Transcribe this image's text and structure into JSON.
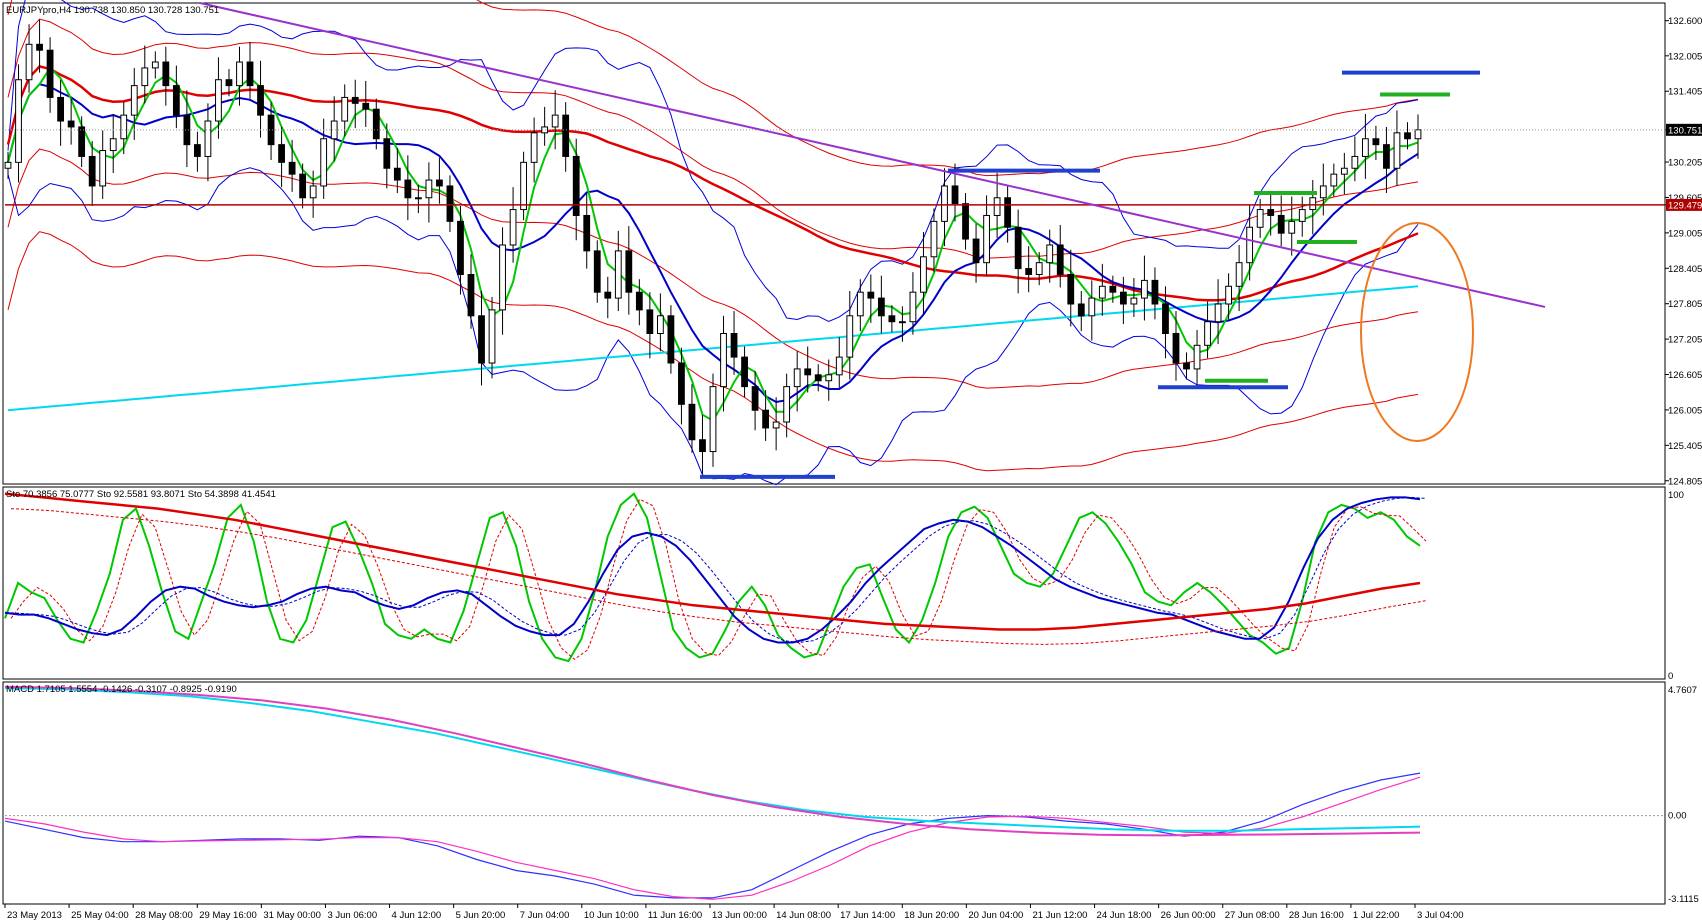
{
  "window": {
    "symbol_line": "EURJPYpro,H4  130.738 130.850 130.728 130.751"
  },
  "colors": {
    "background": "#ffffff",
    "bull": "#ffffff",
    "bear": "#000000",
    "bb_inner": "#0000dd",
    "bb_outer": "#e00000",
    "ma_fast": "#00c800",
    "ma_mid": "#0000c8",
    "ma_slow": "#e00000",
    "ma_long": "#00d8f0",
    "trendline": "#9932cc",
    "hline": "#b00000",
    "circle": "#f07820",
    "macd_main": "#3030ff",
    "macd_signal": "#ff30c0",
    "macd_long": "#00d8f0",
    "macd_long_signal": "#e040c0"
  },
  "price_panel": {
    "axis_labels": [
      "132.600",
      "132.005",
      "131.405",
      "130.751",
      "130.205",
      "129.605",
      "129.479",
      "129.005",
      "128.405",
      "127.805",
      "127.205",
      "126.605",
      "126.005",
      "125.405",
      "124.805"
    ],
    "current_price_tag": "130.751",
    "hline_price_tag": "129.479"
  },
  "stoch_panel": {
    "title": "Sto 70.3856 75.0777  Sto 92.5581 93.8071  Sto 54.3898 41.4541",
    "axis_labels": [
      "100",
      "0"
    ]
  },
  "macd_panel": {
    "title": "MACD 1.7105 1.5554 -0.1426 -0.3107 -0.8925 -0.9190",
    "axis_labels": [
      "4.7607",
      "0.00",
      "-3.1115"
    ]
  },
  "time_axis": {
    "labels": [
      "23 May 2013",
      "25 May 04:00",
      "28 May 08:00",
      "29 May 16:00",
      "31 May 00:00",
      "3 Jun 06:00",
      "4 Jun 12:00",
      "5 Jun 20:00",
      "7 Jun 04:00",
      "10 Jun 10:00",
      "11 Jun 16:00",
      "13 Jun 00:00",
      "14 Jun 08:00",
      "17 Jun 14:00",
      "18 Jun 20:00",
      "20 Jun 04:00",
      "21 Jun 12:00",
      "24 Jun 18:00",
      "26 Jun 00:00",
      "27 Jun 08:00",
      "28 Jun 16:00",
      "1 Jul 22:00",
      "3 Jul 04:00"
    ]
  },
  "chart_data": [
    {
      "type": "candlestick",
      "title": "EURJPYpro,H4",
      "last_bar": {
        "open": 130.738,
        "high": 130.85,
        "low": 130.728,
        "close": 130.751
      },
      "ylim": [
        124.75,
        132.9
      ],
      "y_ticks": [
        132.6,
        132.005,
        131.405,
        130.751,
        130.205,
        129.605,
        129.479,
        129.005,
        128.405,
        127.805,
        127.205,
        126.605,
        126.005,
        125.405,
        124.805
      ],
      "x_tick_labels": [
        "23 May 2013",
        "25 May 04:00",
        "28 May 08:00",
        "29 May 16:00",
        "31 May 00:00",
        "3 Jun 06:00",
        "4 Jun 12:00",
        "5 Jun 20:00",
        "7 Jun 04:00",
        "10 Jun 10:00",
        "11 Jun 16:00",
        "13 Jun 00:00",
        "14 Jun 08:00",
        "17 Jun 14:00",
        "18 Jun 20:00",
        "20 Jun 04:00",
        "21 Jun 12:00",
        "24 Jun 18:00",
        "26 Jun 00:00",
        "27 Jun 08:00",
        "28 Jun 16:00",
        "1 Jul 22:00",
        "3 Jul 04:00"
      ],
      "closes": [
        130.2,
        131.6,
        132.2,
        132.1,
        131.3,
        130.9,
        130.8,
        130.3,
        129.8,
        130.4,
        130.6,
        131.0,
        131.5,
        131.8,
        131.9,
        131.5,
        131.0,
        130.5,
        130.3,
        130.9,
        131.6,
        131.5,
        131.9,
        131.5,
        131.0,
        130.5,
        130.2,
        130.0,
        129.6,
        129.8,
        130.6,
        130.9,
        131.3,
        131.2,
        131.1,
        130.6,
        130.1,
        129.9,
        129.6,
        129.6,
        129.9,
        129.8,
        129.2,
        128.3,
        127.6,
        126.8,
        127.7,
        128.8,
        129.4,
        130.2,
        130.7,
        130.8,
        131.0,
        130.3,
        129.3,
        128.7,
        128.0,
        127.9,
        128.7,
        128.0,
        127.7,
        127.3,
        127.6,
        126.8,
        126.1,
        125.5,
        125.3,
        126.4,
        127.3,
        126.9,
        126.4,
        126.0,
        125.7,
        125.8,
        126.4,
        126.7,
        126.6,
        126.5,
        126.6,
        126.9,
        127.6,
        128.0,
        127.9,
        127.6,
        127.5,
        127.5,
        128.0,
        128.6,
        129.2,
        129.8,
        129.5,
        128.9,
        128.5,
        129.3,
        129.6,
        129.1,
        128.4,
        128.3,
        128.5,
        128.8,
        128.3,
        127.8,
        127.6,
        127.9,
        128.1,
        128.0,
        127.8,
        127.9,
        128.2,
        127.8,
        127.3,
        126.8,
        126.7,
        127.1,
        127.5,
        127.8,
        128.1,
        128.5,
        129.1,
        129.4,
        129.3,
        129.0,
        129.2,
        129.4,
        129.6,
        129.8,
        130.0,
        130.1,
        130.3,
        130.6,
        130.5,
        130.1,
        130.7,
        130.6,
        130.751
      ],
      "overlays": [
        "Bollinger bands (blue)",
        "Envelope bands (red)",
        "Moving averages: green, blue, red, cyan"
      ],
      "annotations": {
        "resistance_trendline": {
          "from_price": 132.9,
          "to_price": 127.75
        },
        "horizontal_line": 129.479,
        "segment_levels": [
          {
            "color": "blue",
            "price": 124.87
          },
          {
            "color": "blue",
            "price": 130.06
          },
          {
            "color": "blue",
            "price": 126.39
          },
          {
            "color": "green",
            "price": 126.5
          },
          {
            "color": "green",
            "price": 129.68
          },
          {
            "color": "green",
            "price": 128.85
          },
          {
            "color": "green",
            "price": 131.35
          },
          {
            "color": "blue",
            "price": 131.72
          }
        ],
        "highlight": "ellipse"
      }
    },
    {
      "type": "line",
      "title": "Sto 70.3856 75.0777  Sto 92.5581 93.8071  Sto 54.3898 41.4541",
      "ylim": [
        0,
        100
      ],
      "series": [
        {
          "values": [
            31,
            50,
            45,
            42,
            30,
            20,
            18,
            35,
            55,
            84,
            90,
            70,
            45,
            24,
            20,
            40,
            60,
            85,
            92,
            72,
            40,
            20,
            18,
            30,
            55,
            80,
            83,
            68,
            50,
            28,
            22,
            20,
            25,
            20,
            18,
            35,
            60,
            85,
            88,
            70,
            40,
            20,
            10,
            8,
            20,
            45,
            75,
            92,
            98,
            85,
            55,
            25,
            15,
            10,
            12,
            25,
            40,
            48,
            38,
            22,
            15,
            10,
            12,
            30,
            48,
            58,
            60,
            42,
            25,
            18,
            30,
            50,
            75,
            88,
            91,
            85,
            70,
            55,
            50,
            48,
            55,
            70,
            85,
            88,
            82,
            72,
            60,
            45,
            40,
            38,
            45,
            50,
            45,
            38,
            30,
            22,
            18,
            12,
            15,
            40,
            72,
            88,
            92,
            90,
            85,
            88,
            84,
            75,
            70
          ]
        },
        {
          "values": [
            34,
            33,
            33,
            31,
            28,
            25,
            23,
            22,
            25,
            32,
            40,
            46,
            48,
            47,
            43,
            40,
            38,
            37,
            38,
            40,
            44,
            47,
            48,
            46,
            45,
            41,
            38,
            36,
            38,
            42,
            45,
            46,
            44,
            38,
            32,
            27,
            24,
            22,
            22,
            28,
            40,
            55,
            68,
            75,
            77,
            75,
            70,
            62,
            52,
            42,
            32,
            25,
            20,
            18,
            18,
            20,
            25,
            32,
            40,
            50,
            58,
            65,
            72,
            79,
            82,
            84,
            83,
            80,
            75,
            70,
            64,
            58,
            52,
            48,
            45,
            42,
            40,
            38,
            36,
            34,
            33,
            30,
            27,
            24,
            22,
            20,
            20,
            26,
            40,
            58,
            74,
            84,
            90,
            93,
            95,
            96,
            96,
            95
          ]
        },
        {
          "values": [
            98,
            96,
            94,
            92,
            90,
            87,
            84,
            80,
            76,
            72,
            68,
            64,
            60,
            56,
            52,
            48,
            44,
            41,
            38,
            36,
            34,
            32,
            30,
            28,
            27,
            26,
            25,
            25,
            26,
            28,
            30,
            32,
            34,
            36,
            39,
            43,
            47,
            50
          ]
        }
      ]
    },
    {
      "type": "line",
      "title": "MACD 1.7105 1.5554 -0.1426 -0.3107 -0.8925 -0.9190",
      "ylim": [
        -3.1115,
        4.7607
      ],
      "series": [
        {
          "values": [
            -0.2,
            -0.5,
            -0.8,
            -0.95,
            -0.95,
            -0.9,
            -0.85,
            -0.85,
            -0.9,
            -0.75,
            -0.8,
            -1.1,
            -1.6,
            -2.0,
            -2.2,
            -2.5,
            -2.9,
            -3.0,
            -3.0,
            -2.7,
            -2.0,
            -1.3,
            -0.7,
            -0.3,
            -0.1,
            0.0,
            -0.05,
            -0.2,
            -0.3,
            -0.5,
            -0.75,
            -0.6,
            -0.2,
            0.4,
            0.9,
            1.3,
            1.55
          ]
        },
        {
          "values": [
            -0.1,
            -0.3,
            -0.6,
            -0.85,
            -0.95,
            -0.92,
            -0.9,
            -0.88,
            -0.86,
            -0.8,
            -0.8,
            -0.95,
            -1.3,
            -1.7,
            -2.0,
            -2.3,
            -2.7,
            -2.95,
            -3.05,
            -2.9,
            -2.4,
            -1.8,
            -1.1,
            -0.6,
            -0.25,
            -0.05,
            -0.02,
            -0.1,
            -0.25,
            -0.4,
            -0.6,
            -0.65,
            -0.45,
            -0.05,
            0.45,
            0.95,
            1.4
          ]
        },
        {
          "values": [
            4.65,
            4.6,
            4.5,
            4.35,
            4.1,
            3.8,
            3.4,
            3.0,
            2.5,
            2.0,
            1.5,
            1.0,
            0.55,
            0.2,
            -0.05,
            -0.2,
            -0.3,
            -0.4,
            -0.5,
            -0.55,
            -0.55,
            -0.5,
            -0.45,
            -0.4
          ]
        },
        {
          "values": [
            4.7,
            4.65,
            4.55,
            4.4,
            4.2,
            3.9,
            3.5,
            3.0,
            2.45,
            1.9,
            1.3,
            0.75,
            0.3,
            -0.05,
            -0.3,
            -0.5,
            -0.62,
            -0.7,
            -0.72,
            -0.7,
            -0.68,
            -0.65,
            -0.62
          ]
        }
      ]
    }
  ]
}
